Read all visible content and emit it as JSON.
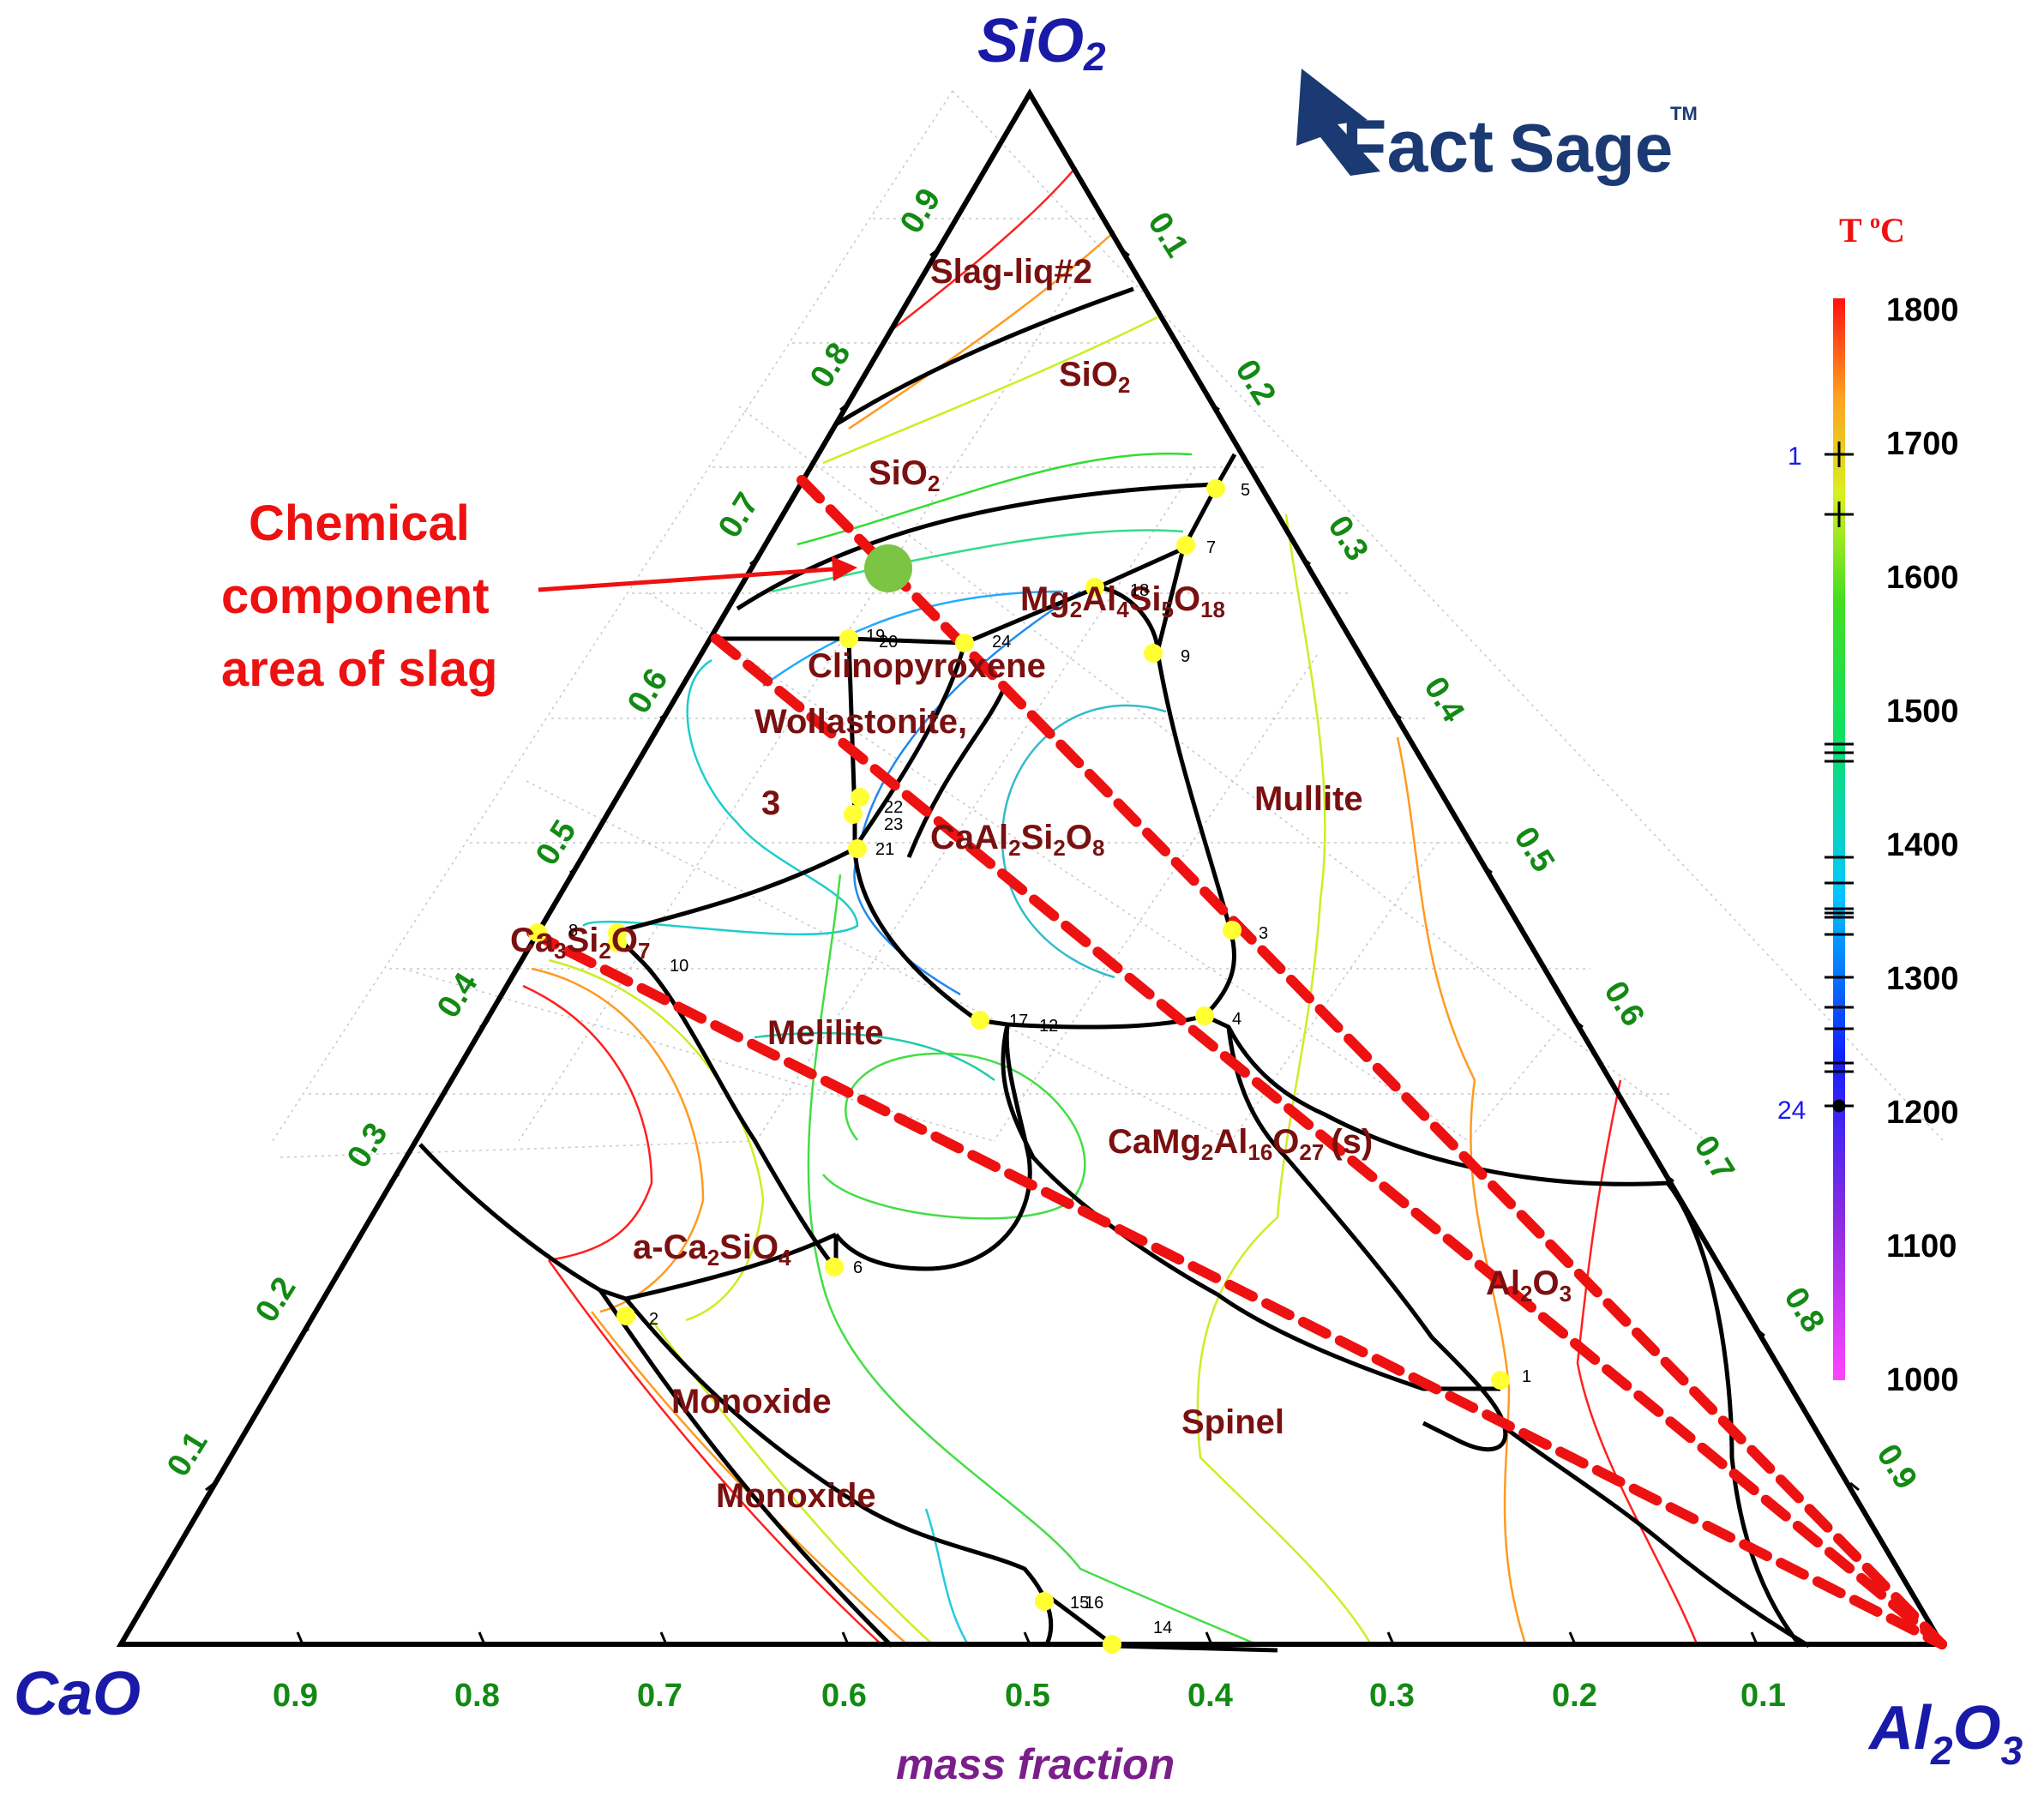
{
  "vertices": {
    "top": "SiO",
    "top_sub": "2",
    "left": "CaO",
    "right_a": "Al",
    "right_sub": "2",
    "right_b": "O",
    "right_sub2": "3"
  },
  "axis_label": "mass fraction",
  "logo": {
    "bold": "Fact",
    "light": "Sage",
    "tm": "TM"
  },
  "ticks": [
    "0.9",
    "0.8",
    "0.7",
    "0.6",
    "0.5",
    "0.4",
    "0.3",
    "0.2",
    "0.1"
  ],
  "phases": {
    "slag_liq2": "Slag-liq#2",
    "sio2_a": "SiO",
    "sio2_a_sub": "2",
    "sio2_b": "SiO",
    "sio2_b_sub": "2",
    "cordierite_a": "Mg",
    "cordierite_s1": "2",
    "cordierite_b": "Al",
    "cordierite_s2": "4",
    "cordierite_c": "Si",
    "cordierite_s3": "5",
    "cordierite_d": "O",
    "cordierite_s4": "18",
    "clinopyroxene": "Clinopyroxene",
    "wollastonite": "Wollastonite,",
    "mullite": "Mullite",
    "anorthite_a": "CaAl",
    "anorthite_s1": "2",
    "anorthite_b": "Si",
    "anorthite_s2": "2",
    "anorthite_c": "O",
    "anorthite_s3": "8",
    "ca3si2o7_a": "Ca",
    "ca3si2o7_s1": "3",
    "ca3si2o7_b": "Si",
    "ca3si2o7_s2": "2",
    "ca3si2o7_c": "O",
    "ca3si2o7_s3": "7",
    "melilite": "Melilite",
    "cma_a": "CaMg",
    "cma_s1": "2",
    "cma_b": "Al",
    "cma_s2": "16",
    "cma_c": "O",
    "cma_s3": "27",
    "cma_d": "(s)",
    "c2s_a": "a-Ca",
    "c2s_s1": "2",
    "c2s_b": "SiO",
    "c2s_s2": "4",
    "al2o3_a": "Al",
    "al2o3_s1": "2",
    "al2o3_b": "O",
    "al2o3_s2": "3",
    "monoxide_a": "Monoxide",
    "monoxide_b": "Monoxide",
    "spinel": "Spinel",
    "region3": "3"
  },
  "invariants": [
    "1",
    "2",
    "3",
    "4",
    "5",
    "6",
    "7",
    "8",
    "9",
    "10",
    "12",
    "14",
    "15",
    "16",
    "17",
    "18",
    "19",
    "20",
    "21",
    "22",
    "23",
    "24"
  ],
  "annotation": {
    "line1": "Chemical",
    "line2": "component",
    "line3": "area of slag"
  },
  "colorbar": {
    "title_a": "T ",
    "title_sup": "o",
    "title_b": "C",
    "labels": [
      "1800",
      "1700",
      "1600",
      "1500",
      "1400",
      "1300",
      "1200",
      "1100",
      "1000"
    ],
    "marker_top": "1",
    "marker_bottom": "24"
  },
  "colors": {
    "frame": "#000000",
    "ticks": "#138a13",
    "phase": "#7a1010",
    "vertex": "#1a1aa8",
    "annotation": "#ee1111",
    "point": "#ffff33",
    "green_dot": "#7cc443"
  }
}
